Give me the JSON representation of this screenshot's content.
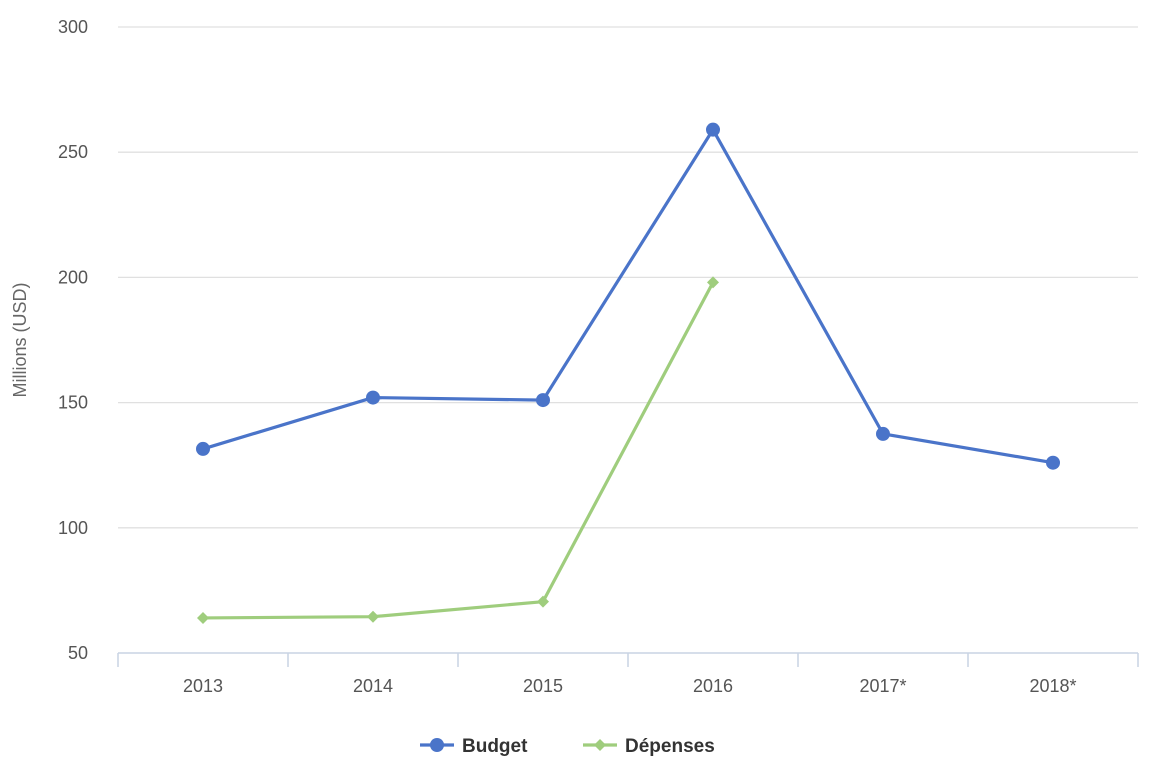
{
  "chart_data": {
    "type": "line",
    "categories": [
      "2013",
      "2014",
      "2015",
      "2016",
      "2017*",
      "2018*"
    ],
    "ylabel": "Millions (USD)",
    "ylim": [
      50,
      300
    ],
    "yticks": [
      50,
      100,
      150,
      200,
      250,
      300
    ],
    "grid": true,
    "legend_position": "bottom-center",
    "series": [
      {
        "name": "Budget",
        "color": "#4a74c9",
        "marker": "circle",
        "values": [
          131.5,
          152,
          151,
          259,
          137.5,
          126
        ]
      },
      {
        "name": "Dépenses",
        "color": "#9fcd7d",
        "marker": "diamond",
        "values": [
          64,
          64.5,
          70.5,
          198,
          null,
          null
        ]
      }
    ]
  }
}
